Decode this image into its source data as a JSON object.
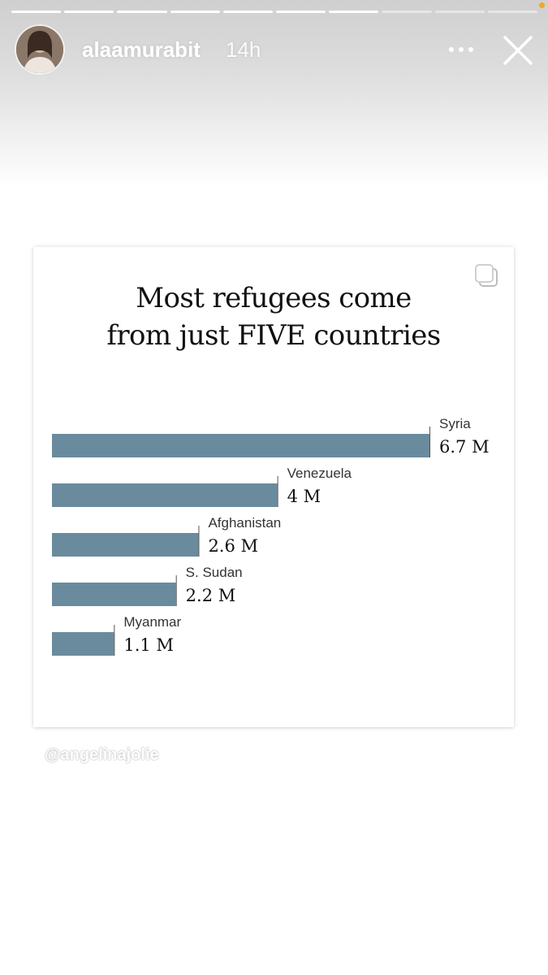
{
  "story": {
    "progress": {
      "total_segments": 10,
      "completed_segments": 7
    },
    "header": {
      "username": "alaamurabit",
      "time_ago": "14h",
      "more_icon": "more-horizontal-icon",
      "close_icon": "close-icon"
    },
    "watermark": "@angelinajolie"
  },
  "colors": {
    "bar": "#6a8b9d",
    "title": "#111111",
    "header_text": "#ffffff",
    "notify_dot": "#f5a623"
  },
  "chart_data": {
    "type": "bar",
    "orientation": "horizontal",
    "title_lines": [
      "Most refugees come",
      "from just FIVE countries"
    ],
    "categories": [
      "Syria",
      "Venezuela",
      "Afghanistan",
      "S. Sudan",
      "Myanmar"
    ],
    "values": [
      6.7,
      4,
      2.6,
      2.2,
      1.1
    ],
    "value_labels": [
      "6.7 M",
      "4 M",
      "2.6 M",
      "2.2 M",
      "1.1 M"
    ],
    "unit": "M",
    "xlim": [
      0,
      6.7
    ],
    "grid": false,
    "legend": "none"
  }
}
